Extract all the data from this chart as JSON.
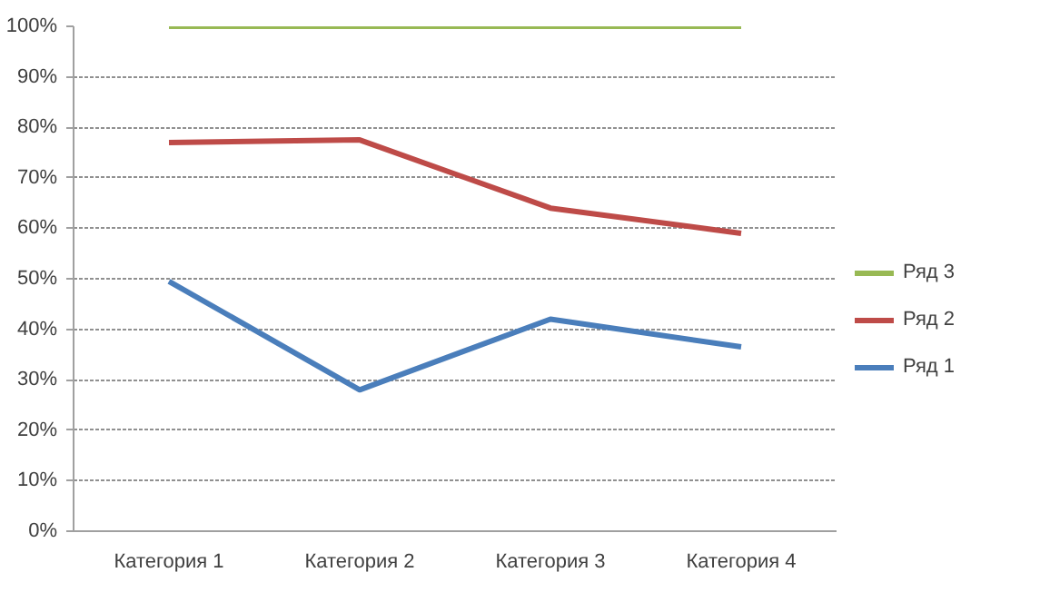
{
  "chart_data": {
    "type": "line",
    "categories": [
      "Категория 1",
      "Категория 2",
      "Категория 3",
      "Категория 4"
    ],
    "series": [
      {
        "name": "Ряд 1",
        "color": "#4a7ebb",
        "values": [
          49.5,
          28,
          42,
          36.5
        ]
      },
      {
        "name": "Ряд 2",
        "color": "#be4b48",
        "values": [
          77,
          77.5,
          64,
          59
        ]
      },
      {
        "name": "Ряд 3",
        "color": "#98b954",
        "values": [
          100,
          100,
          100,
          100
        ]
      }
    ],
    "ylim": [
      0,
      100
    ],
    "yticks": [
      {
        "value": 0,
        "label": "0%"
      },
      {
        "value": 10,
        "label": "10%"
      },
      {
        "value": 20,
        "label": "20%"
      },
      {
        "value": 30,
        "label": "30%"
      },
      {
        "value": 40,
        "label": "40%"
      },
      {
        "value": 50,
        "label": "50%"
      },
      {
        "value": 60,
        "label": "60%"
      },
      {
        "value": 70,
        "label": "70%"
      },
      {
        "value": 80,
        "label": "80%"
      },
      {
        "value": 90,
        "label": "90%"
      },
      {
        "value": 100,
        "label": "100%"
      }
    ],
    "grid": "y",
    "legend": "right",
    "marker": "none",
    "line_style": "solid"
  }
}
